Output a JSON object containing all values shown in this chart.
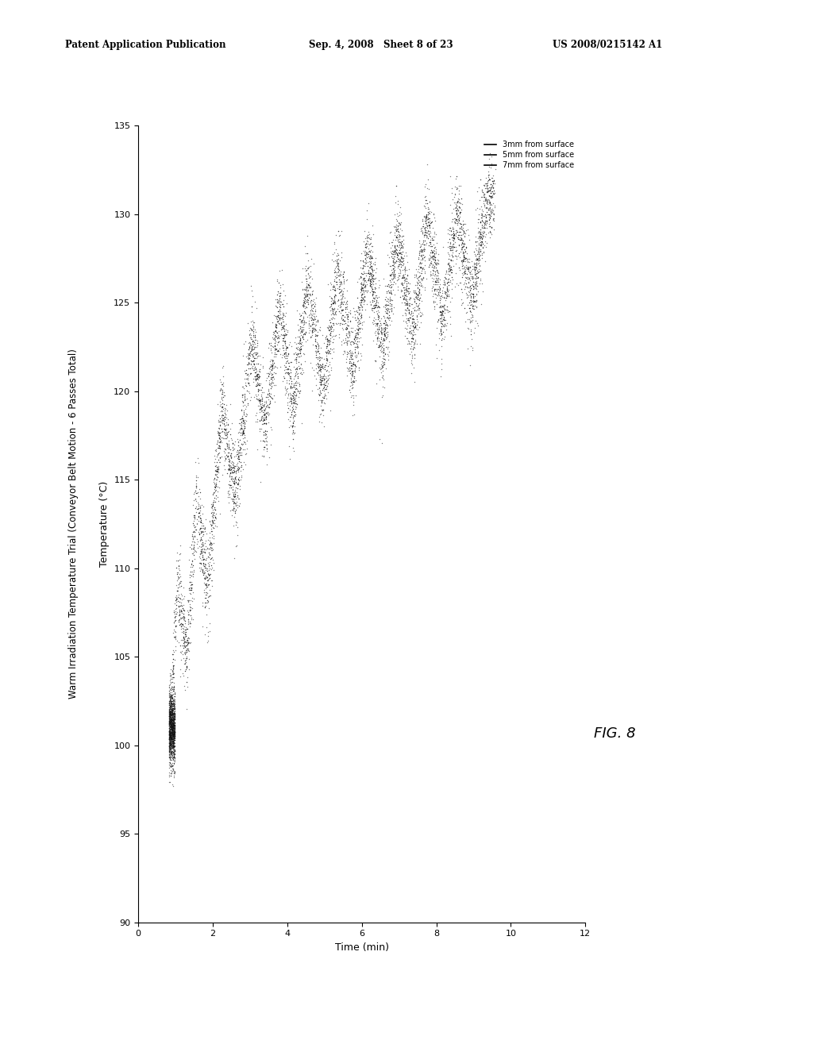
{
  "header_left": "Patent Application Publication",
  "header_mid": "Sep. 4, 2008   Sheet 8 of 23",
  "header_right": "US 2008/0215142 A1",
  "chart_title": "Warm Irradiation Temperature Trial (Conveyor Belt Motion - 6 Passes Total)",
  "xlabel_rotated": "Temperature (°C)",
  "ylabel_rotated": "Time (min)",
  "fig_label": "FIG. 8",
  "legend_entries": [
    "3mm from surface",
    "5mm from surface",
    "7mm from surface"
  ],
  "temp_min": 90,
  "temp_max": 135,
  "time_min": 0,
  "time_max": 12,
  "temp_ticks": [
    90,
    95,
    100,
    105,
    110,
    115,
    120,
    125,
    130,
    135
  ],
  "time_ticks": [
    0,
    2,
    4,
    6,
    8,
    10,
    12
  ],
  "background_color": "#ffffff"
}
